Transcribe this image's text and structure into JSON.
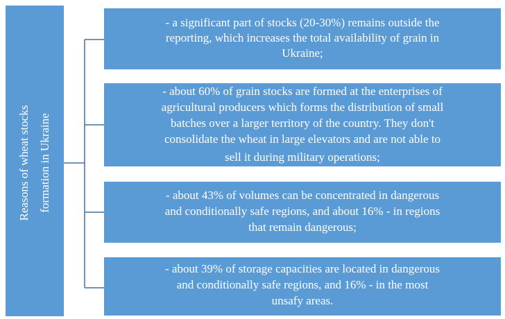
{
  "root": {
    "lines": [
      "Reasons of wheat stocks",
      "formation in Ukraine"
    ]
  },
  "nodes": [
    {
      "lines": [
        "- a significant  part of stocks (20-30%) remains  outside the",
        "reporting, which increases the total availability  of grain in",
        "Ukraine;"
      ]
    },
    {
      "lines": [
        "- about 60% of grain stocks are formed at the enterprises of",
        "agricultural  producers which forms the distribution of small",
        "batches over a larger territory of the country. They don't",
        "consolidate the wheat in large  elevators and are not able to",
        "sell it during military  operations;"
      ]
    },
    {
      "lines": [
        "- about 43% of volumes can be concentrated in dangerous",
        "and conditionally  safe regions, and about 16% - in regions",
        "that remain  dangerous;"
      ]
    },
    {
      "lines": [
        "- about 39% of storage capacities are located in dangerous",
        "and conditionally  safe regions, and 16% - in the most",
        "unsafy areas."
      ]
    }
  ]
}
